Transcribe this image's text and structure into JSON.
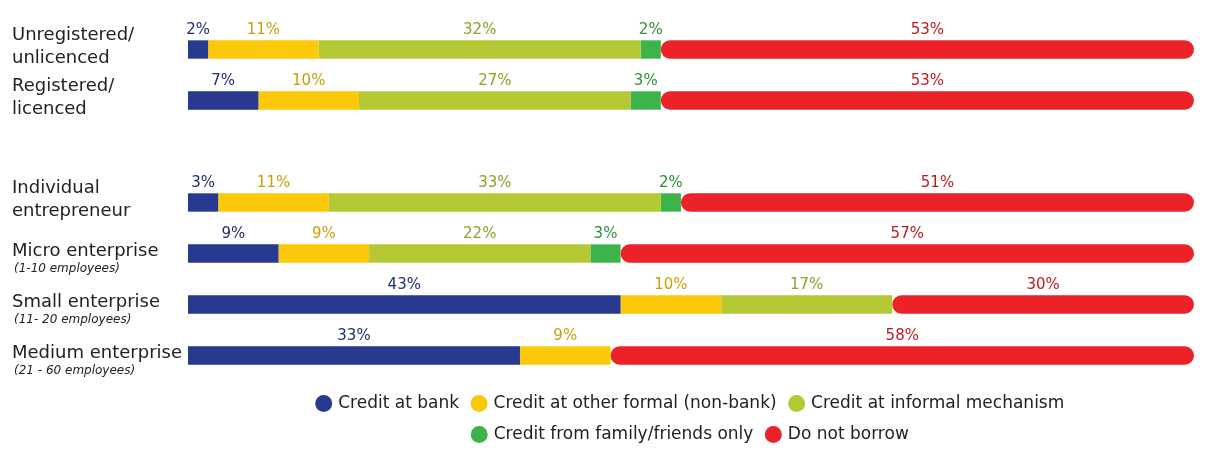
{
  "chart_data": {
    "type": "bar",
    "orientation": "horizontal",
    "stacked": true,
    "legend": "bottom",
    "categories": [
      "Unregistered/\nunlicenced",
      "Registered/\nlicenced",
      null,
      "Individual\nentrepreneur",
      "Micro enterprise\n(1-10 employees)",
      "Small enterprise\n(11- 20 employees)",
      "Medium enterprise\n(21 - 60 employees)"
    ],
    "series": [
      {
        "name": "Credit at bank",
        "color": "#283a8f",
        "values": [
          2,
          7,
          null,
          3,
          9,
          43,
          33
        ],
        "value_labels": [
          "2%",
          "7%",
          null,
          "3%",
          "9%",
          "43%",
          "33%"
        ]
      },
      {
        "name": "Credit at other formal (non-bank)",
        "color": "#fcc80a",
        "values": [
          11,
          10,
          null,
          11,
          9,
          10,
          9
        ],
        "value_labels": [
          "11%",
          "10%",
          null,
          "11%",
          "9%",
          "10%",
          "9%"
        ]
      },
      {
        "name": "Credit at informal mechanism",
        "color": "#b5c935",
        "values": [
          32,
          27,
          null,
          33,
          22,
          17,
          null
        ],
        "value_labels": [
          "32%",
          "27%",
          null,
          "33%",
          "22%",
          "17%",
          null
        ]
      },
      {
        "name": "Credit from family/friends only",
        "color": "#3cb44a",
        "values": [
          2,
          3,
          null,
          2,
          3,
          null,
          null
        ],
        "value_labels": [
          "2%",
          "3%",
          null,
          "2%",
          "3%",
          null,
          null
        ]
      },
      {
        "name": "Do not borrow",
        "color": "#ec2229",
        "values": [
          53,
          53,
          null,
          51,
          57,
          30,
          58
        ],
        "value_labels": [
          "53%",
          "53%",
          null,
          "51%",
          "57%",
          "30%",
          "58%"
        ]
      }
    ]
  }
}
